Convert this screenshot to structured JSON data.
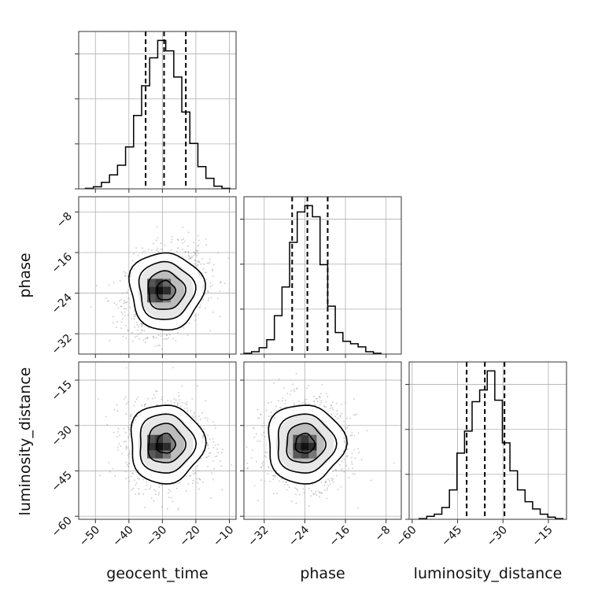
{
  "chart_data": {
    "type": "corner",
    "parameters": [
      "geocent_time",
      "phase",
      "luminosity_distance"
    ],
    "axes": {
      "geocent_time": {
        "range": [
          -55,
          -8
        ],
        "ticks": [
          -50,
          -40,
          -30,
          -20,
          -10
        ],
        "tick_labels": [
          "−50",
          "−40",
          "−30",
          "−20",
          "−10"
        ]
      },
      "phase": {
        "range": [
          -36,
          -5
        ],
        "ticks": [
          -32,
          -24,
          -16,
          -8
        ],
        "tick_labels": [
          "−32",
          "−24",
          "−16",
          "−8"
        ]
      },
      "luminosity_distance": {
        "range": [
          -61,
          -9
        ],
        "ticks": [
          -60,
          -45,
          -30,
          -15
        ],
        "tick_labels": [
          "−60",
          "−45",
          "−30",
          "−15"
        ]
      }
    },
    "quantiles": {
      "geocent_time": [
        -35,
        -29.5,
        -23
      ],
      "phase": [
        -26.5,
        -23.5,
        -19.5
      ],
      "luminosity_distance": [
        -42,
        -36,
        -29.5
      ]
    },
    "histograms": {
      "geocent_time": {
        "bin_edges": [
          -53,
          -50.6,
          -48.2,
          -45.8,
          -43.4,
          -41,
          -38.6,
          -36.2,
          -33.8,
          -31.4,
          -29,
          -26.6,
          -24.2,
          -21.8,
          -19.4,
          -17,
          -14.6,
          -12.2,
          -9.8
        ],
        "counts": [
          0.3,
          1.2,
          3.7,
          8,
          13.5,
          24,
          42,
          59,
          75,
          85,
          79,
          64,
          44,
          26,
          12.7,
          6,
          1.5,
          0.3
        ]
      },
      "phase": {
        "bin_edges": [
          -36,
          -34.5,
          -33,
          -31.5,
          -30,
          -28.5,
          -27,
          -25.5,
          -24,
          -22.5,
          -21,
          -19.5,
          -18,
          -16.5,
          -15,
          -13.5,
          -12,
          -10.5,
          -9
        ],
        "counts": [
          0.5,
          1.5,
          4,
          9,
          24,
          42,
          70,
          89,
          93,
          86,
          56,
          30,
          13.5,
          8,
          6.5,
          4.5,
          1.5,
          0.5
        ]
      },
      "luminosity_distance": {
        "bin_edges": [
          -57.7,
          -55.2,
          -52.7,
          -50.2,
          -47.7,
          -45.2,
          -42.7,
          -40.2,
          -37.7,
          -35.2,
          -32.7,
          -30.2,
          -27.7,
          -25.2,
          -22.7,
          -20.2,
          -17.7,
          -15.2,
          -12.7,
          -10.2
        ],
        "counts": [
          0.5,
          2,
          3.5,
          8,
          20,
          45,
          60,
          80,
          88,
          101,
          81,
          52,
          33,
          20,
          12,
          7,
          3.5,
          1.5,
          0.5
        ]
      }
    },
    "pair_scatter": {
      "phase_vs_geocent_time": {
        "x_mean": -29,
        "y_mean": -23.5,
        "x_sd": 5.5,
        "y_sd": 3.8,
        "correlation": 0.25,
        "peak": [
          -31,
          -23.5
        ]
      },
      "luminosity_distance_vs_geocent_time": {
        "x_mean": -29,
        "y_mean": -36,
        "x_sd": 5.5,
        "y_sd": 6.5,
        "correlation": 0.0,
        "peak": [
          -31,
          -37
        ]
      },
      "luminosity_distance_vs_phase": {
        "x_mean": -24,
        "y_mean": -36,
        "x_sd": 3.8,
        "y_sd": 6.5,
        "correlation": 0.0,
        "peak": [
          -24,
          -37
        ]
      }
    },
    "contour_levels_sigma": [
      0.5,
      1.0,
      1.5,
      2.0
    ],
    "grid": true,
    "colors": {
      "line": "#000000",
      "scatter": "#9a9a9a",
      "grid": "#b0b0b0"
    }
  }
}
